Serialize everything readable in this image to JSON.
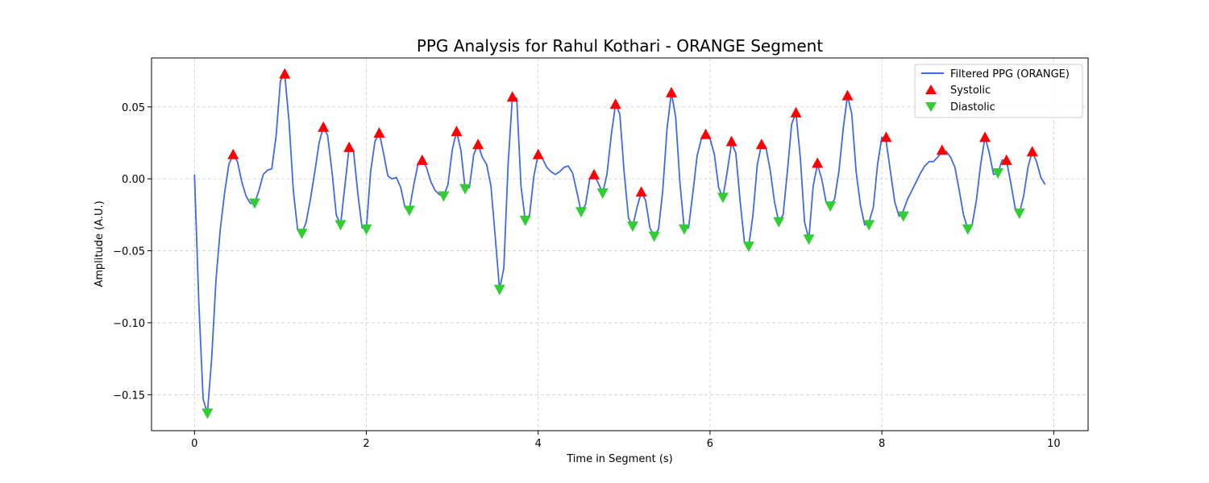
{
  "chart_data": {
    "type": "line",
    "title": "PPG Analysis for Rahul Kothari - ORANGE Segment",
    "xlabel": "Time in Segment (s)",
    "ylabel": "Amplitude (A.U.)",
    "xlim": [
      -0.5,
      10.4
    ],
    "ylim": [
      -0.175,
      0.084
    ],
    "xticks": [
      0,
      2,
      4,
      6,
      8,
      10
    ],
    "xtick_labels": [
      "0",
      "2",
      "4",
      "6",
      "8",
      "10"
    ],
    "yticks": [
      -0.15,
      -0.1,
      -0.05,
      0.0,
      0.05
    ],
    "ytick_labels": [
      "−0.15",
      "−0.10",
      "−0.05",
      "0.00",
      "0.05"
    ],
    "grid": true,
    "legend_position": "top-right",
    "colors": {
      "line": "#4169e1",
      "systolic": "#ff0000",
      "diastolic": "#32cd32",
      "grid": "#cccccc"
    },
    "series": [
      {
        "name": "Filtered PPG (ORANGE)",
        "kind": "line",
        "x": [
          0,
          0.05,
          0.1,
          0.15,
          0.2,
          0.25,
          0.3,
          0.35,
          0.4,
          0.45,
          0.5,
          0.55,
          0.6,
          0.65,
          0.7,
          0.75,
          0.8,
          0.85,
          0.9,
          0.95,
          1.0,
          1.05,
          1.1,
          1.15,
          1.2,
          1.25,
          1.3,
          1.35,
          1.4,
          1.45,
          1.5,
          1.55,
          1.6,
          1.65,
          1.7,
          1.75,
          1.8,
          1.85,
          1.9,
          1.95,
          2.0,
          2.05,
          2.1,
          2.15,
          2.2,
          2.25,
          2.3,
          2.35,
          2.4,
          2.45,
          2.5,
          2.55,
          2.6,
          2.65,
          2.7,
          2.75,
          2.8,
          2.85,
          2.9,
          2.95,
          3.0,
          3.05,
          3.1,
          3.15,
          3.2,
          3.25,
          3.3,
          3.35,
          3.4,
          3.45,
          3.5,
          3.55,
          3.6,
          3.65,
          3.7,
          3.75,
          3.8,
          3.85,
          3.9,
          3.95,
          4.0,
          4.05,
          4.1,
          4.15,
          4.2,
          4.25,
          4.3,
          4.35,
          4.4,
          4.45,
          4.5,
          4.55,
          4.6,
          4.65,
          4.7,
          4.75,
          4.8,
          4.85,
          4.9,
          4.95,
          5.0,
          5.05,
          5.1,
          5.15,
          5.2,
          5.25,
          5.3,
          5.35,
          5.4,
          5.45,
          5.5,
          5.55,
          5.6,
          5.65,
          5.7,
          5.75,
          5.8,
          5.85,
          5.9,
          5.95,
          6.0,
          6.05,
          6.1,
          6.15,
          6.2,
          6.25,
          6.3,
          6.35,
          6.4,
          6.45,
          6.5,
          6.55,
          6.6,
          6.65,
          6.7,
          6.75,
          6.8,
          6.85,
          6.9,
          6.95,
          7.0,
          7.05,
          7.1,
          7.15,
          7.2,
          7.25,
          7.3,
          7.35,
          7.4,
          7.45,
          7.5,
          7.55,
          7.6,
          7.65,
          7.7,
          7.75,
          7.8,
          7.85,
          7.9,
          7.95,
          8.0,
          8.05,
          8.1,
          8.15,
          8.2,
          8.25,
          8.3,
          8.35,
          8.4,
          8.45,
          8.5,
          8.55,
          8.6,
          8.65,
          8.7,
          8.75,
          8.8,
          8.85,
          8.9,
          8.95,
          9.0,
          9.05,
          9.1,
          9.15,
          9.2,
          9.25,
          9.3,
          9.35,
          9.4,
          9.45,
          9.5,
          9.55,
          9.6,
          9.65,
          9.7,
          9.75,
          9.8,
          9.85,
          9.9
        ],
        "y": [
          0.003,
          -0.085,
          -0.153,
          -0.163,
          -0.125,
          -0.07,
          -0.035,
          -0.01,
          0.01,
          0.017,
          0.012,
          -0.002,
          -0.012,
          -0.017,
          -0.017,
          -0.008,
          0.003,
          0.006,
          0.007,
          0.03,
          0.068,
          0.073,
          0.04,
          -0.008,
          -0.035,
          -0.038,
          -0.03,
          -0.014,
          0.005,
          0.025,
          0.036,
          0.03,
          0.005,
          -0.025,
          -0.032,
          -0.005,
          0.022,
          0.02,
          -0.01,
          -0.034,
          -0.035,
          0.005,
          0.026,
          0.032,
          0.018,
          0.002,
          0.0,
          0.001,
          -0.006,
          -0.02,
          -0.022,
          -0.005,
          0.01,
          0.013,
          0.008,
          -0.002,
          -0.008,
          -0.011,
          -0.012,
          -0.004,
          0.02,
          0.033,
          0.02,
          -0.007,
          -0.006,
          0.017,
          0.024,
          0.015,
          0.01,
          -0.005,
          -0.04,
          -0.077,
          -0.062,
          0.01,
          0.057,
          0.056,
          -0.005,
          -0.029,
          -0.025,
          0.002,
          0.017,
          0.014,
          0.008,
          0.005,
          0.003,
          0.005,
          0.008,
          0.009,
          0.004,
          -0.009,
          -0.023,
          -0.018,
          0.0,
          0.003,
          -0.003,
          -0.01,
          0.003,
          0.03,
          0.052,
          0.045,
          0.005,
          -0.027,
          -0.033,
          -0.02,
          -0.009,
          -0.015,
          -0.034,
          -0.04,
          -0.035,
          -0.008,
          0.035,
          0.06,
          0.043,
          -0.003,
          -0.035,
          -0.034,
          -0.01,
          0.016,
          0.028,
          0.031,
          0.028,
          0.017,
          -0.006,
          -0.013,
          0.005,
          0.025,
          0.018,
          -0.015,
          -0.044,
          -0.047,
          -0.025,
          0.01,
          0.024,
          0.022,
          0.006,
          -0.016,
          -0.03,
          -0.025,
          0.005,
          0.038,
          0.046,
          0.015,
          -0.03,
          -0.042,
          -0.005,
          0.01,
          0.0,
          -0.016,
          -0.019,
          -0.014,
          0.005,
          0.035,
          0.058,
          0.045,
          0.005,
          -0.018,
          -0.032,
          -0.03,
          -0.02,
          0.01,
          0.029,
          0.026,
          0.005,
          -0.016,
          -0.026,
          -0.022,
          -0.014,
          -0.008,
          -0.002,
          0.004,
          0.009,
          0.012,
          0.012,
          0.015,
          0.019,
          0.019,
          0.015,
          0.008,
          -0.008,
          -0.025,
          -0.035,
          -0.032,
          -0.015,
          0.01,
          0.029,
          0.018,
          0.003,
          0.004,
          0.013,
          0.013,
          -0.003,
          -0.02,
          -0.024,
          -0.012,
          0.008,
          0.019,
          0.012,
          0.001,
          -0.004
        ]
      },
      {
        "name": "Systolic",
        "kind": "marker",
        "marker": "triangle-up",
        "x": [
          0.45,
          1.05,
          1.5,
          1.8,
          2.15,
          2.65,
          3.05,
          3.3,
          3.7,
          4.0,
          4.65,
          4.9,
          5.2,
          5.55,
          5.95,
          6.25,
          6.6,
          7.0,
          7.25,
          7.6,
          8.05,
          8.7,
          9.2,
          9.45,
          9.75
        ],
        "y": [
          0.017,
          0.073,
          0.036,
          0.022,
          0.032,
          0.013,
          0.033,
          0.024,
          0.057,
          0.017,
          0.003,
          0.052,
          -0.009,
          0.06,
          0.031,
          0.026,
          0.024,
          0.046,
          0.011,
          0.058,
          0.029,
          0.02,
          0.029,
          0.013,
          0.019
        ]
      },
      {
        "name": "Diastolic",
        "kind": "marker",
        "marker": "triangle-down",
        "x": [
          0.15,
          0.7,
          1.25,
          1.7,
          2.0,
          2.5,
          2.9,
          3.15,
          3.55,
          3.85,
          4.5,
          4.75,
          5.1,
          5.35,
          5.7,
          6.15,
          6.45,
          6.8,
          7.15,
          7.4,
          7.85,
          8.25,
          9.0,
          9.35,
          9.6
        ],
        "y": [
          -0.163,
          -0.017,
          -0.038,
          -0.032,
          -0.035,
          -0.022,
          -0.012,
          -0.007,
          -0.077,
          -0.029,
          -0.023,
          -0.01,
          -0.033,
          -0.04,
          -0.035,
          -0.013,
          -0.047,
          -0.03,
          -0.042,
          -0.019,
          -0.032,
          -0.026,
          -0.035,
          0.004,
          -0.024
        ]
      }
    ],
    "legend": [
      "Filtered PPG (ORANGE)",
      "Systolic",
      "Diastolic"
    ]
  }
}
